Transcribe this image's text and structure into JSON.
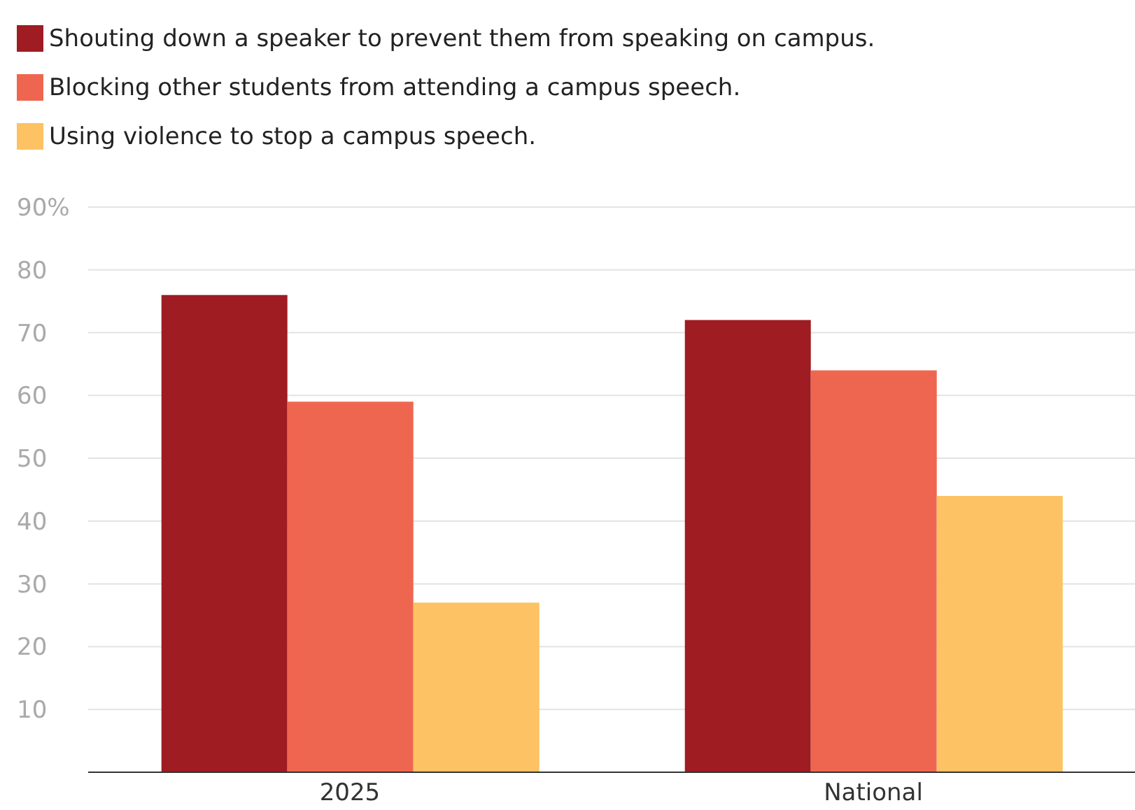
{
  "chart_data": {
    "type": "bar",
    "categories": [
      "2025",
      "National"
    ],
    "series": [
      {
        "name": "Shouting down a speaker to prevent them from speaking on campus.",
        "color": "#9e1c22",
        "values": [
          76,
          72
        ]
      },
      {
        "name": "Blocking other students from attending a campus speech.",
        "color": "#ef6650",
        "values": [
          59,
          64
        ]
      },
      {
        "name": "Using violence to stop a campus speech.",
        "color": "#fdc263",
        "values": [
          27,
          44
        ]
      }
    ],
    "ylim": [
      0,
      90
    ],
    "yticks": [
      10,
      20,
      30,
      40,
      50,
      60,
      70,
      80,
      {
        "value": 90,
        "label": "90%"
      }
    ],
    "grid": "y",
    "legend": "top left"
  }
}
